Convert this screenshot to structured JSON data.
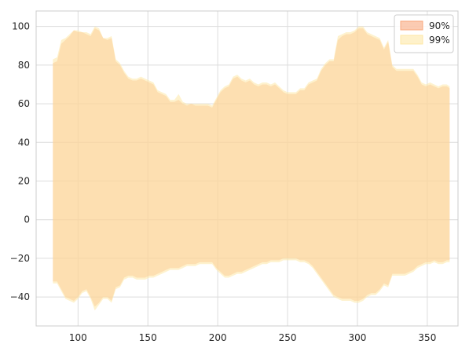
{
  "chart_data": {
    "type": "area",
    "title": "",
    "xlabel": "",
    "ylabel": "",
    "xlim": [
      70,
      372
    ],
    "ylim": [
      -55,
      108
    ],
    "x_ticks": [
      100,
      150,
      200,
      250,
      300,
      350
    ],
    "y_ticks": [
      -40,
      -20,
      0,
      20,
      40,
      60,
      80,
      100
    ],
    "x_tick_labels": [
      "100",
      "150",
      "200",
      "250",
      "300",
      "350"
    ],
    "y_tick_labels": [
      "−40",
      "−20",
      "0",
      "20",
      "40",
      "60",
      "80",
      "100"
    ],
    "grid": true,
    "legend_position": "top-right",
    "series": [
      {
        "name": "90%",
        "color": "#f9a97f",
        "opacity": 0.5,
        "x": [
          82,
          85,
          88,
          91,
          94,
          97,
          100,
          103,
          106,
          109,
          112,
          115,
          118,
          121,
          124,
          127,
          130,
          133,
          136,
          139,
          142,
          145,
          148,
          151,
          154,
          157,
          160,
          163,
          166,
          169,
          172,
          175,
          178,
          181,
          184,
          187,
          190,
          193,
          196,
          199,
          202,
          205,
          208,
          211,
          214,
          217,
          220,
          223,
          226,
          229,
          232,
          235,
          238,
          241,
          244,
          247,
          250,
          253,
          256,
          259,
          262,
          265,
          268,
          271,
          274,
          277,
          280,
          283,
          286,
          289,
          292,
          295,
          298,
          301,
          304,
          307,
          310,
          313,
          316,
          319,
          322,
          325,
          328,
          331,
          334,
          337,
          340,
          343,
          346,
          349,
          352,
          355,
          358,
          361,
          364,
          366
        ],
        "upper": [
          81,
          82,
          91,
          93,
          95,
          98,
          97,
          97,
          96,
          95,
          99,
          98,
          94,
          93,
          94,
          82,
          80,
          76,
          73,
          72,
          72,
          73,
          72,
          71,
          70,
          66,
          65,
          64,
          61,
          61,
          62,
          60,
          59,
          60,
          59,
          59,
          59,
          59,
          58,
          62,
          66,
          68,
          69,
          73,
          74,
          72,
          71,
          72,
          70,
          69,
          70,
          70,
          69,
          70,
          68,
          66,
          65,
          65,
          65,
          67,
          67,
          70,
          71,
          72,
          77,
          80,
          82,
          82,
          93,
          95,
          96,
          96,
          97,
          99,
          99,
          96,
          95,
          94,
          93,
          88,
          92,
          79,
          77,
          77,
          77,
          77,
          77,
          74,
          70,
          69,
          70,
          69,
          68,
          69,
          69,
          68
        ],
        "lower": [
          -32,
          -32,
          -36,
          -40,
          -41,
          -42,
          -40,
          -37,
          -36,
          -40,
          -45,
          -43,
          -40,
          -40,
          -42,
          -35,
          -34,
          -30,
          -29,
          -29,
          -30,
          -30,
          -30,
          -29,
          -29,
          -28,
          -27,
          -26,
          -25,
          -25,
          -25,
          -24,
          -23,
          -23,
          -23,
          -22,
          -22,
          -22,
          -22,
          -25,
          -27,
          -29,
          -29,
          -28,
          -27,
          -27,
          -26,
          -25,
          -24,
          -23,
          -22,
          -22,
          -21,
          -21,
          -21,
          -20,
          -20,
          -20,
          -20,
          -21,
          -21,
          -22,
          -24,
          -27,
          -30,
          -33,
          -36,
          -39,
          -40,
          -41,
          -41,
          -41,
          -42,
          -42,
          -41,
          -39,
          -38,
          -38,
          -36,
          -33,
          -34,
          -28,
          -28,
          -28,
          -28,
          -27,
          -26,
          -24,
          -23,
          -22,
          -22,
          -21,
          -22,
          -22,
          -21,
          -21
        ]
      },
      {
        "name": "99%",
        "color": "#fde7a6",
        "opacity": 0.55,
        "x": [
          82,
          85,
          88,
          91,
          94,
          97,
          100,
          103,
          106,
          109,
          112,
          115,
          118,
          121,
          124,
          127,
          130,
          133,
          136,
          139,
          142,
          145,
          148,
          151,
          154,
          157,
          160,
          163,
          166,
          169,
          172,
          175,
          178,
          181,
          184,
          187,
          190,
          193,
          196,
          199,
          202,
          205,
          208,
          211,
          214,
          217,
          220,
          223,
          226,
          229,
          232,
          235,
          238,
          241,
          244,
          247,
          250,
          253,
          256,
          259,
          262,
          265,
          268,
          271,
          274,
          277,
          280,
          283,
          286,
          289,
          292,
          295,
          298,
          301,
          304,
          307,
          310,
          313,
          316,
          319,
          322,
          325,
          328,
          331,
          334,
          337,
          340,
          343,
          346,
          349,
          352,
          355,
          358,
          361,
          364,
          366
        ],
        "upper": [
          83,
          84,
          93,
          94,
          96,
          98,
          98,
          97,
          97,
          96,
          100,
          99,
          94,
          94,
          95,
          83,
          81,
          77,
          74,
          73,
          73,
          74,
          73,
          72,
          71,
          67,
          66,
          65,
          62,
          62,
          65,
          61,
          60,
          60,
          60,
          60,
          60,
          60,
          59,
          63,
          67,
          69,
          70,
          74,
          75,
          73,
          72,
          73,
          71,
          70,
          71,
          71,
          70,
          71,
          69,
          67,
          66,
          66,
          66,
          68,
          68,
          71,
          72,
          73,
          78,
          81,
          83,
          83,
          95,
          96,
          97,
          97,
          98,
          100,
          100,
          97,
          96,
          95,
          94,
          89,
          93,
          80,
          78,
          78,
          78,
          78,
          78,
          75,
          71,
          70,
          71,
          70,
          69,
          70,
          70,
          69
        ],
        "lower": [
          -33,
          -33,
          -37,
          -41,
          -42,
          -43,
          -41,
          -38,
          -37,
          -41,
          -47,
          -44,
          -41,
          -41,
          -43,
          -36,
          -35,
          -31,
          -30,
          -30,
          -31,
          -31,
          -31,
          -30,
          -30,
          -29,
          -28,
          -27,
          -26,
          -26,
          -26,
          -25,
          -24,
          -24,
          -24,
          -23,
          -23,
          -23,
          -23,
          -26,
          -28,
          -30,
          -30,
          -29,
          -28,
          -28,
          -27,
          -26,
          -25,
          -24,
          -23,
          -23,
          -22,
          -22,
          -22,
          -21,
          -21,
          -21,
          -21,
          -22,
          -22,
          -23,
          -25,
          -28,
          -31,
          -34,
          -37,
          -40,
          -41,
          -42,
          -42,
          -42,
          -43,
          -43,
          -42,
          -40,
          -39,
          -39,
          -37,
          -34,
          -35,
          -29,
          -29,
          -29,
          -29,
          -28,
          -27,
          -25,
          -24,
          -23,
          -23,
          -22,
          -23,
          -23,
          -22,
          -22
        ]
      }
    ]
  }
}
